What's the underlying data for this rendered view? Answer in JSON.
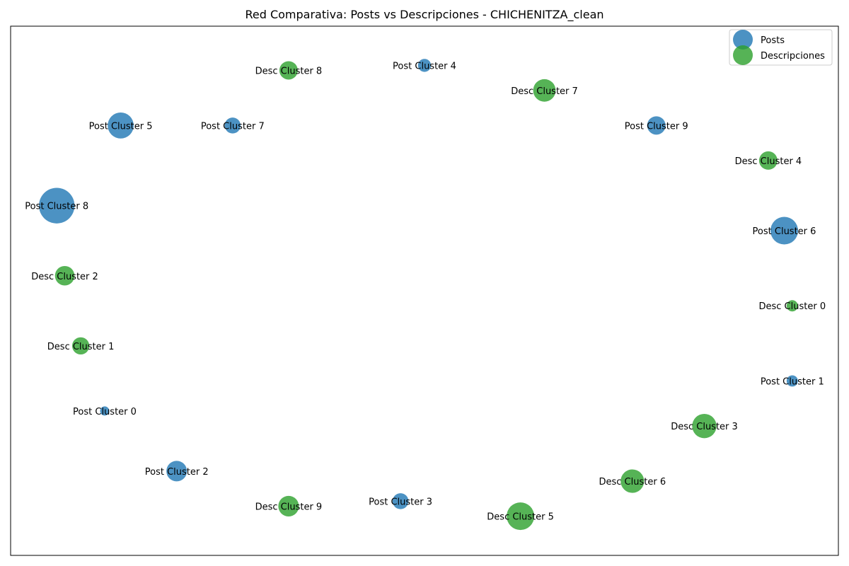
{
  "chart_data": {
    "type": "scatter",
    "title": "Red Comparativa: Posts vs Descripciones - CHICHENITZA_clean",
    "xlabel": "",
    "ylabel": "",
    "grid": false,
    "axes_ticks": false,
    "legend_position": "top-right",
    "series": [
      {
        "name": "Posts",
        "color": "#1f77b4",
        "nodes": [
          {
            "label": "Post Cluster 0",
            "x": 0.1,
            "y": 0.26,
            "size": 1
          },
          {
            "label": "Post Cluster 1",
            "x": 0.96,
            "y": 0.32,
            "size": 1.5
          },
          {
            "label": "Post Cluster 2",
            "x": 0.19,
            "y": 0.14,
            "size": 5
          },
          {
            "label": "Post Cluster 3",
            "x": 0.47,
            "y": 0.08,
            "size": 3
          },
          {
            "label": "Post Cluster 4",
            "x": 0.5,
            "y": 0.95,
            "size": 2
          },
          {
            "label": "Post Cluster 5",
            "x": 0.12,
            "y": 0.83,
            "size": 8
          },
          {
            "label": "Post Cluster 6",
            "x": 0.95,
            "y": 0.62,
            "size": 9
          },
          {
            "label": "Post Cluster 7",
            "x": 0.26,
            "y": 0.83,
            "size": 3
          },
          {
            "label": "Post Cluster 8",
            "x": 0.04,
            "y": 0.67,
            "size": 15
          },
          {
            "label": "Post Cluster 9",
            "x": 0.79,
            "y": 0.83,
            "size": 4
          }
        ]
      },
      {
        "name": "Descripciones",
        "color": "#2ca02c",
        "nodes": [
          {
            "label": "Desc Cluster 0",
            "x": 0.96,
            "y": 0.47,
            "size": 1.5
          },
          {
            "label": "Desc Cluster 1",
            "x": 0.07,
            "y": 0.39,
            "size": 3.5
          },
          {
            "label": "Desc Cluster 2",
            "x": 0.05,
            "y": 0.53,
            "size": 4.5
          },
          {
            "label": "Desc Cluster 3",
            "x": 0.85,
            "y": 0.23,
            "size": 7
          },
          {
            "label": "Desc Cluster 4",
            "x": 0.93,
            "y": 0.76,
            "size": 4
          },
          {
            "label": "Desc Cluster 5",
            "x": 0.62,
            "y": 0.05,
            "size": 9
          },
          {
            "label": "Desc Cluster 6",
            "x": 0.76,
            "y": 0.12,
            "size": 6.5
          },
          {
            "label": "Desc Cluster 7",
            "x": 0.65,
            "y": 0.9,
            "size": 6
          },
          {
            "label": "Desc Cluster 8",
            "x": 0.33,
            "y": 0.94,
            "size": 4
          },
          {
            "label": "Desc Cluster 9",
            "x": 0.33,
            "y": 0.07,
            "size": 5
          }
        ]
      }
    ],
    "xlim": [
      0,
      1
    ],
    "ylim": [
      0,
      1
    ]
  }
}
